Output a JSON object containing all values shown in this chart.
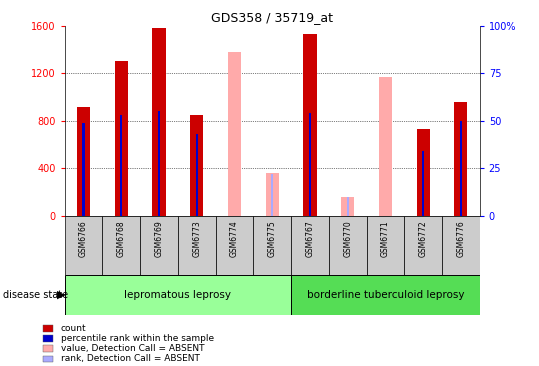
{
  "title": "GDS358 / 35719_at",
  "samples": [
    "GSM6766",
    "GSM6768",
    "GSM6769",
    "GSM6773",
    "GSM6774",
    "GSM6775",
    "GSM6767",
    "GSM6770",
    "GSM6771",
    "GSM6772",
    "GSM6776"
  ],
  "count_values": [
    920,
    1300,
    1580,
    850,
    null,
    null,
    1530,
    null,
    null,
    730,
    960
  ],
  "percentile_values": [
    49,
    53,
    55,
    43,
    null,
    null,
    54,
    null,
    null,
    34,
    50
  ],
  "absent_value_values": [
    null,
    null,
    null,
    null,
    1380,
    360,
    null,
    160,
    1170,
    null,
    null
  ],
  "absent_rank_values": [
    null,
    null,
    null,
    null,
    null,
    22,
    null,
    10,
    null,
    null,
    null
  ],
  "ylim_left": [
    0,
    1600
  ],
  "ylim_right": [
    0,
    100
  ],
  "yticks_left": [
    0,
    400,
    800,
    1200,
    1600
  ],
  "yticks_right": [
    0,
    25,
    50,
    75,
    100
  ],
  "group1_label": "lepromatous leprosy",
  "group2_label": "borderline tuberculoid leprosy",
  "group1_indices": [
    0,
    1,
    2,
    3,
    4,
    5
  ],
  "group2_indices": [
    6,
    7,
    8,
    9,
    10
  ],
  "disease_state_label": "disease state",
  "count_color": "#cc0000",
  "percentile_color": "#0000cc",
  "absent_value_color": "#ffaaaa",
  "absent_rank_color": "#aaaaff",
  "group1_bg": "#99ff99",
  "group2_bg": "#55dd55",
  "sample_bg": "#cccccc",
  "fig_bg": "#ffffff"
}
